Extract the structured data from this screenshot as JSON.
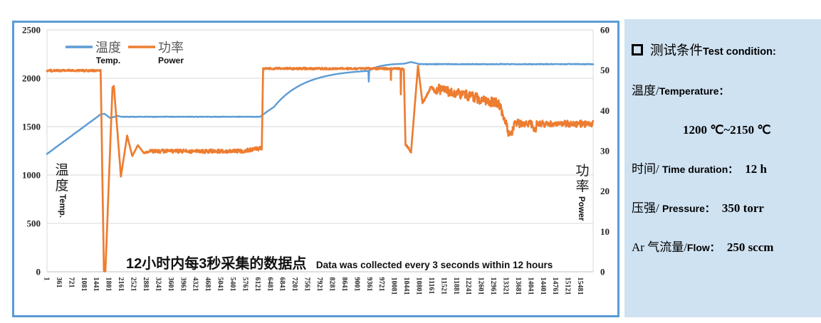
{
  "panel": {
    "title_cn": "测试条件",
    "title_en": "Test condition:",
    "rows": [
      {
        "cn": "温度/",
        "en": "Temperature："
      },
      {
        "value": "1200 ℃~2150 ℃"
      },
      {
        "cn": "时间/ ",
        "en": "Time duration：",
        "value": "12 h"
      },
      {
        "cn": "压强/ ",
        "en": "Pressure：",
        "value": "350 torr"
      },
      {
        "cn": "Ar 气流量/",
        "en": "Flow：",
        "value": "250 sccm"
      }
    ]
  },
  "annotation": {
    "cn": "12小时内每3秒采集的数据点",
    "en": "Data was collected every 3 seconds within 12 hours"
  },
  "colors": {
    "temperature": "#5B9BD5",
    "power": "#ED7D31",
    "frame": "#5B9BD5",
    "panel_bg": "#CFE2F2",
    "gridline": "#D9D9D9",
    "axis_line": "#BFBFBF"
  },
  "chart_data": {
    "type": "line",
    "title": "",
    "legend_position": "top-left-inside",
    "grid": "horizontal",
    "x_axis": {
      "min": 1,
      "max": 15840,
      "tick_step": 360,
      "ticks": [
        1,
        361,
        721,
        1081,
        1441,
        1801,
        2161,
        2521,
        2881,
        3241,
        3601,
        3961,
        4321,
        4681,
        5041,
        5401,
        5761,
        6121,
        6481,
        6841,
        7201,
        7561,
        7921,
        8281,
        8641,
        9001,
        9361,
        9721,
        10081,
        10441,
        10801,
        11161,
        11521,
        11881,
        12241,
        12601,
        12961,
        13321,
        13681,
        14041,
        14401,
        14761,
        15121,
        15481
      ]
    },
    "y_left": {
      "title_cn": "温度",
      "title_en": "Temp.",
      "min": 0,
      "max": 2500,
      "ticks": [
        2500,
        2000,
        1500,
        1000,
        500,
        0
      ]
    },
    "y_right": {
      "title_cn": "功率",
      "title_en": "Power",
      "min": 0,
      "max": 60,
      "ticks": [
        60,
        50,
        40,
        30,
        20,
        10,
        0
      ]
    },
    "segment_format": "[x_start, x_end, value_start, value_end, noise_amplitude, curve(0=linear,1=ease_out)]",
    "series": [
      {
        "name_cn": "温度",
        "name_en": "Temp.",
        "axis": "left",
        "color": "#5B9BD5",
        "segments": [
          [
            1,
            1555,
            1218,
            1626,
            2,
            0
          ],
          [
            1555,
            1665,
            1626,
            1634,
            0,
            0
          ],
          [
            1665,
            1835,
            1634,
            1589,
            0,
            0
          ],
          [
            1835,
            2045,
            1589,
            1611,
            0,
            0
          ],
          [
            2045,
            2165,
            1611,
            1602,
            0,
            0
          ],
          [
            2165,
            6185,
            1602,
            1602,
            2.5,
            0
          ],
          [
            6185,
            6400,
            1602,
            1660,
            0,
            0
          ],
          [
            6400,
            6580,
            1660,
            1702,
            0,
            0
          ],
          [
            6580,
            6645,
            1702,
            1730,
            0,
            0
          ],
          [
            6645,
            9320,
            1730,
            2076,
            0,
            1
          ],
          [
            9320,
            9332,
            2076,
            1965,
            0,
            0
          ],
          [
            9332,
            9348,
            1965,
            2080,
            0,
            0
          ],
          [
            9348,
            10350,
            2080,
            2150,
            0,
            1
          ],
          [
            10350,
            10560,
            2150,
            2168,
            0,
            0
          ],
          [
            10560,
            10790,
            2168,
            2148,
            0,
            0
          ],
          [
            10790,
            15840,
            2146,
            2146,
            3.5,
            0
          ]
        ]
      },
      {
        "name_cn": "功率",
        "name_en": "Power",
        "axis": "right",
        "color": "#ED7D31",
        "segments": [
          [
            1,
            1545,
            49.9,
            49.9,
            0.25,
            0
          ],
          [
            1545,
            1557,
            49.9,
            50.1,
            0,
            0
          ],
          [
            1557,
            1652,
            50.1,
            0.2,
            0,
            0
          ],
          [
            1652,
            1695,
            0.2,
            0.1,
            0.15,
            0
          ],
          [
            1695,
            1900,
            0.1,
            45.7,
            0,
            0
          ],
          [
            1900,
            1940,
            45.7,
            46.1,
            0,
            0
          ],
          [
            1940,
            2145,
            46.1,
            23.6,
            0,
            0
          ],
          [
            2145,
            2325,
            23.6,
            33.8,
            0,
            0
          ],
          [
            2325,
            2475,
            33.8,
            28.7,
            0,
            0
          ],
          [
            2475,
            2635,
            28.7,
            31.4,
            0,
            0
          ],
          [
            2635,
            2815,
            31.4,
            29.4,
            0,
            0
          ],
          [
            2815,
            2980,
            29.4,
            29.9,
            0.2,
            0
          ],
          [
            2980,
            5700,
            29.9,
            29.9,
            0.45,
            0
          ],
          [
            5700,
            6230,
            30,
            30.7,
            0.5,
            0
          ],
          [
            6230,
            6268,
            30.7,
            50.5,
            0,
            0
          ],
          [
            6268,
            9968,
            50.4,
            50.4,
            0.25,
            0
          ],
          [
            9968,
            9975,
            50.4,
            47.6,
            0,
            0
          ],
          [
            9975,
            9984,
            47.6,
            50.4,
            0,
            0
          ],
          [
            9984,
            10253,
            50.4,
            50.4,
            0.22,
            0
          ],
          [
            10253,
            10262,
            50.4,
            44,
            0,
            0
          ],
          [
            10262,
            10276,
            44,
            50.3,
            0,
            0
          ],
          [
            10276,
            10350,
            50.3,
            50.3,
            0.2,
            0
          ],
          [
            10350,
            10398,
            50.3,
            31.6,
            0,
            0
          ],
          [
            10398,
            10560,
            31.6,
            29.8,
            0.3,
            0
          ],
          [
            10560,
            10760,
            29.8,
            51.1,
            0,
            0
          ],
          [
            10760,
            10892,
            51.1,
            41.8,
            0,
            0
          ],
          [
            10892,
            11142,
            41.8,
            46,
            0.4,
            0
          ],
          [
            11142,
            11295,
            46,
            44.2,
            0.5,
            0
          ],
          [
            11295,
            12150,
            45.4,
            43.8,
            1.2,
            0
          ],
          [
            12150,
            13085,
            43.8,
            41.7,
            1.3,
            0
          ],
          [
            13085,
            13295,
            41.7,
            37.8,
            1.2,
            0
          ],
          [
            13295,
            13380,
            37.8,
            34.5,
            1,
            0
          ],
          [
            13380,
            13460,
            34.5,
            33.9,
            0.9,
            0
          ],
          [
            13460,
            13570,
            33.9,
            37,
            0.8,
            0
          ],
          [
            13570,
            14065,
            37,
            36.4,
            1.05,
            0
          ],
          [
            14065,
            14190,
            36.4,
            35,
            0.9,
            0
          ],
          [
            14190,
            15840,
            36.7,
            36.7,
            0.85,
            0
          ]
        ]
      }
    ]
  }
}
